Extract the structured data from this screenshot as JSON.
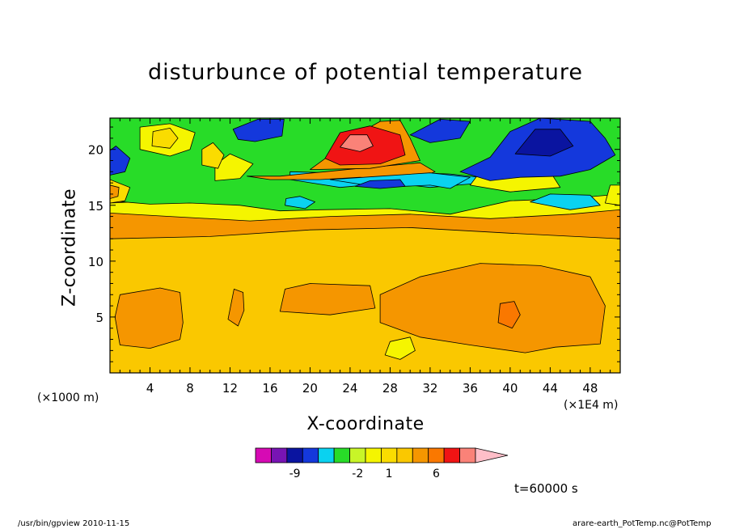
{
  "chart_data": {
    "type": "heatmap",
    "title": "disturbunce of potential temperature",
    "xlabel": "X-coordinate",
    "ylabel": "Z-coordinate",
    "x_scale_label": "(×1000 m)",
    "x_unit_label": "(×1E4 m)",
    "xlim": [
      0,
      51
    ],
    "ylim": [
      0,
      22.8
    ],
    "x_ticks": [
      4,
      8,
      12,
      16,
      20,
      24,
      28,
      32,
      36,
      40,
      44,
      48
    ],
    "y_ticks": [
      5,
      10,
      15,
      20
    ],
    "colorbar": {
      "colors": [
        "#d60ab4",
        "#7814b4",
        "#0a14a0",
        "#1438dc",
        "#0ad2f0",
        "#28dc28",
        "#c8f528",
        "#f5f500",
        "#fadc00",
        "#fac800",
        "#f59600",
        "#fa7800",
        "#f01414",
        "#fa8278",
        "#ffbec8"
      ],
      "tick_labels": [
        {
          "text": "-9",
          "slot": 2
        },
        {
          "text": "-2",
          "slot": 6
        },
        {
          "text": "1",
          "slot": 8
        },
        {
          "text": "6",
          "slot": 11
        }
      ]
    },
    "regions": [
      {
        "level": 9,
        "points": [
          [
            0,
            0
          ],
          [
            51,
            0
          ],
          [
            51,
            12
          ],
          [
            40,
            12.5
          ],
          [
            30,
            13
          ],
          [
            20,
            12.8
          ],
          [
            10,
            12.2
          ],
          [
            0,
            12
          ]
        ]
      },
      {
        "level": 10,
        "points": [
          [
            1,
            2.5
          ],
          [
            4,
            2.2
          ],
          [
            7,
            3
          ],
          [
            7.3,
            4.5
          ],
          [
            7,
            7.2
          ],
          [
            5,
            7.6
          ],
          [
            1,
            7
          ],
          [
            0.5,
            5
          ]
        ]
      },
      {
        "level": 10,
        "points": [
          [
            17,
            5.5
          ],
          [
            22,
            5.2
          ],
          [
            26.5,
            5.8
          ],
          [
            26,
            7.8
          ],
          [
            20,
            8
          ],
          [
            17.5,
            7.5
          ]
        ]
      },
      {
        "level": 10,
        "points": [
          [
            27,
            4.5
          ],
          [
            31,
            3.2
          ],
          [
            36,
            2.5
          ],
          [
            41.5,
            1.8
          ],
          [
            44.5,
            2.3
          ],
          [
            49,
            2.6
          ],
          [
            49.5,
            6
          ],
          [
            48,
            8.6
          ],
          [
            43,
            9.6
          ],
          [
            37,
            9.8
          ],
          [
            31,
            8.6
          ],
          [
            27,
            7
          ]
        ]
      },
      {
        "level": 10,
        "points": [
          [
            11.8,
            4.8
          ],
          [
            12.8,
            4.2
          ],
          [
            13.4,
            5.6
          ],
          [
            13.3,
            7.2
          ],
          [
            12.4,
            7.5
          ]
        ]
      },
      {
        "level": 7,
        "points": [
          [
            27.5,
            1.6
          ],
          [
            29,
            1.2
          ],
          [
            30.5,
            2
          ],
          [
            30,
            3.2
          ],
          [
            28,
            2.8
          ]
        ]
      },
      {
        "level": 11,
        "points": [
          [
            38.8,
            4.5
          ],
          [
            40.2,
            4
          ],
          [
            41,
            5.2
          ],
          [
            40.4,
            6.4
          ],
          [
            39,
            6.2
          ]
        ]
      },
      {
        "level": 7,
        "points": [
          [
            0,
            15.2
          ],
          [
            10,
            15.6
          ],
          [
            20,
            15.4
          ],
          [
            28,
            15.8
          ],
          [
            37,
            16.2
          ],
          [
            45,
            16.6
          ],
          [
            51,
            16.3
          ],
          [
            51,
            14.6
          ],
          [
            46,
            14.2
          ],
          [
            38,
            13.8
          ],
          [
            30,
            14.2
          ],
          [
            22,
            14
          ],
          [
            14,
            13.6
          ],
          [
            6,
            14
          ],
          [
            0,
            14.3
          ]
        ]
      },
      {
        "level": 5,
        "points": [
          [
            0,
            22.8
          ],
          [
            51,
            22.8
          ],
          [
            51,
            16
          ],
          [
            46,
            15.6
          ],
          [
            40,
            15.4
          ],
          [
            34,
            14.2
          ],
          [
            28,
            14.7
          ],
          [
            21,
            14.6
          ],
          [
            17,
            14.5
          ],
          [
            13,
            15
          ],
          [
            8,
            15.2
          ],
          [
            4,
            15.1
          ],
          [
            0,
            15.4
          ]
        ]
      },
      {
        "level": 4,
        "points": [
          [
            18,
            17.3
          ],
          [
            23,
            16.6
          ],
          [
            28,
            17
          ],
          [
            32,
            16.6
          ],
          [
            36,
            16.9
          ],
          [
            39,
            16.4
          ],
          [
            40,
            17.2
          ],
          [
            34,
            17.8
          ],
          [
            28,
            18
          ],
          [
            22,
            17.9
          ],
          [
            18,
            18
          ]
        ]
      },
      {
        "level": 4,
        "points": [
          [
            42,
            15.3
          ],
          [
            46,
            14.6
          ],
          [
            49,
            15
          ],
          [
            48,
            15.9
          ],
          [
            44,
            16
          ]
        ]
      },
      {
        "level": 7,
        "points": [
          [
            3,
            20
          ],
          [
            6,
            19.4
          ],
          [
            8,
            20
          ],
          [
            8.5,
            21.5
          ],
          [
            6,
            22.3
          ],
          [
            3,
            22
          ]
        ]
      },
      {
        "level": 7,
        "points": [
          [
            10.5,
            17.2
          ],
          [
            13,
            17.4
          ],
          [
            14.3,
            18.7
          ],
          [
            12,
            19.6
          ],
          [
            10.5,
            18.6
          ]
        ]
      },
      {
        "level": 7,
        "points": [
          [
            36,
            16.8
          ],
          [
            40,
            16.2
          ],
          [
            45,
            16.6
          ],
          [
            44,
            18
          ],
          [
            40,
            18.2
          ],
          [
            37,
            18
          ]
        ]
      },
      {
        "level": 8,
        "points": [
          [
            4.2,
            20.3
          ],
          [
            6,
            20.1
          ],
          [
            6.8,
            21
          ],
          [
            6,
            21.9
          ],
          [
            4.3,
            21.6
          ]
        ]
      },
      {
        "level": 8,
        "points": [
          [
            9.2,
            18.6
          ],
          [
            10.8,
            18.3
          ],
          [
            11.4,
            19.5
          ],
          [
            10.3,
            20.6
          ],
          [
            9.2,
            20
          ]
        ]
      },
      {
        "level": 8,
        "points": [
          [
            0,
            15.2
          ],
          [
            1.5,
            15.4
          ],
          [
            2,
            16.6
          ],
          [
            0,
            17.3
          ]
        ]
      },
      {
        "level": 10,
        "points": [
          [
            0,
            15.6
          ],
          [
            0.8,
            15.8
          ],
          [
            0.9,
            16.6
          ],
          [
            0,
            16.8
          ]
        ]
      },
      {
        "level": 7,
        "points": [
          [
            49.5,
            15.2
          ],
          [
            51,
            15
          ],
          [
            51,
            16.8
          ],
          [
            50,
            16.8
          ]
        ]
      },
      {
        "level": 10,
        "points": [
          [
            13.7,
            17.6
          ],
          [
            17,
            17.6
          ],
          [
            21.5,
            18
          ],
          [
            26,
            18.4
          ],
          [
            31,
            18.8
          ],
          [
            32.5,
            18
          ],
          [
            30,
            17.2
          ],
          [
            25,
            17.5
          ],
          [
            21,
            17.3
          ],
          [
            16,
            17.3
          ]
        ]
      },
      {
        "level": 10,
        "points": [
          [
            20,
            18.2
          ],
          [
            22,
            19.5
          ],
          [
            24,
            21
          ],
          [
            27,
            22.5
          ],
          [
            29,
            22.6
          ],
          [
            30,
            21
          ],
          [
            31,
            19
          ],
          [
            26,
            18.3
          ]
        ]
      },
      {
        "level": 12,
        "points": [
          [
            21.5,
            19.2
          ],
          [
            23,
            21.5
          ],
          [
            26,
            22.1
          ],
          [
            29,
            21.3
          ],
          [
            29.5,
            19.5
          ],
          [
            27,
            18.7
          ],
          [
            23,
            18.6
          ]
        ]
      },
      {
        "level": 13,
        "points": [
          [
            23,
            20.2
          ],
          [
            24,
            21.3
          ],
          [
            25.7,
            21.3
          ],
          [
            26.3,
            20.3
          ],
          [
            25,
            19.8
          ]
        ]
      },
      {
        "level": 3,
        "points": [
          [
            0,
            17.7
          ],
          [
            1.5,
            18
          ],
          [
            2,
            19.2
          ],
          [
            0.6,
            20.3
          ],
          [
            0,
            19.9
          ]
        ]
      },
      {
        "level": 3,
        "points": [
          [
            12.3,
            21.8
          ],
          [
            14.8,
            22.7
          ],
          [
            17.4,
            22.7
          ],
          [
            17.2,
            21.2
          ],
          [
            14.5,
            20.7
          ],
          [
            12.8,
            20.9
          ]
        ]
      },
      {
        "level": 3,
        "points": [
          [
            30,
            21.3
          ],
          [
            33,
            22.7
          ],
          [
            36,
            22.5
          ],
          [
            35,
            21
          ],
          [
            32,
            20.6
          ]
        ]
      },
      {
        "level": 3,
        "points": [
          [
            35,
            18
          ],
          [
            38,
            19.3
          ],
          [
            40,
            21.6
          ],
          [
            43,
            22.8
          ],
          [
            48,
            22.5
          ],
          [
            49.5,
            21
          ],
          [
            50.5,
            19.5
          ],
          [
            48,
            18.2
          ],
          [
            45,
            17.6
          ],
          [
            41,
            17.5
          ],
          [
            38,
            17.2
          ]
        ]
      },
      {
        "level": 2,
        "points": [
          [
            40.5,
            19.6
          ],
          [
            42.5,
            21.8
          ],
          [
            45,
            21.8
          ],
          [
            46.3,
            20.3
          ],
          [
            44,
            19.4
          ]
        ]
      },
      {
        "level": 4,
        "points": [
          [
            22,
            17.3
          ],
          [
            27,
            16.6
          ],
          [
            32,
            16.8
          ],
          [
            34,
            16.5
          ],
          [
            36,
            17.5
          ],
          [
            32,
            17.9
          ],
          [
            27,
            17.6
          ]
        ]
      },
      {
        "level": 3,
        "points": [
          [
            24.5,
            16.7
          ],
          [
            27,
            16.5
          ],
          [
            29.5,
            16.7
          ],
          [
            29,
            17.3
          ],
          [
            26,
            17.2
          ]
        ]
      },
      {
        "level": 4,
        "points": [
          [
            17.5,
            15
          ],
          [
            19.5,
            14.7
          ],
          [
            20.5,
            15.3
          ],
          [
            19,
            15.8
          ],
          [
            17.6,
            15.6
          ]
        ]
      }
    ]
  },
  "annotations": {
    "time": "t=60000 s",
    "footer_left": "/usr/bin/gpview   2010-11-15",
    "footer_right": "arare-earth_PotTemp.nc@PotTemp"
  }
}
